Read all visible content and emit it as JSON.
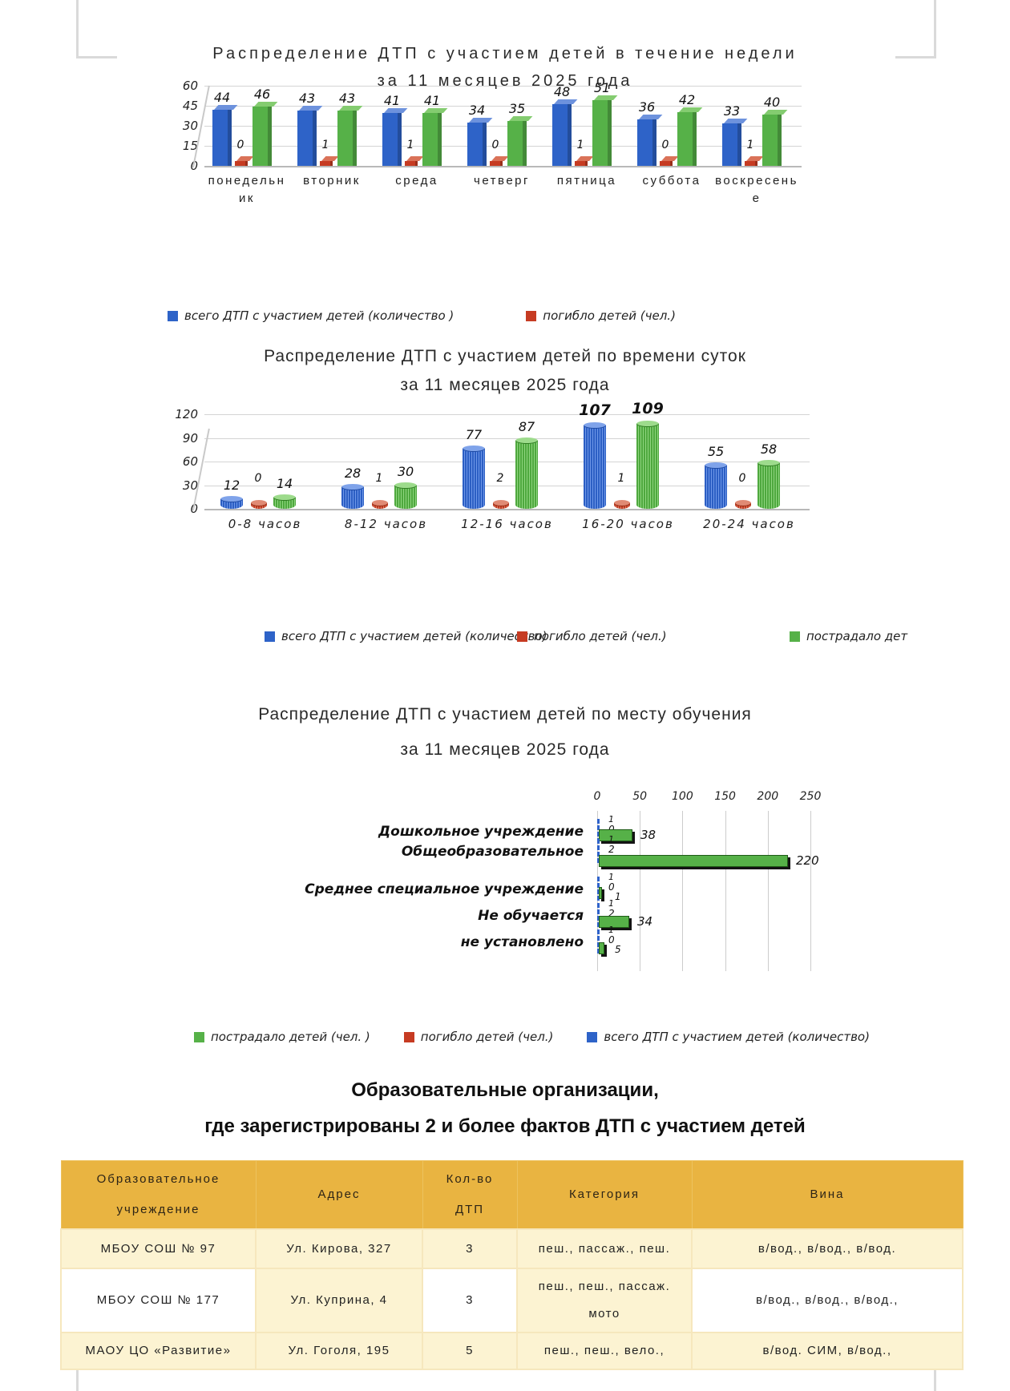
{
  "colors": {
    "total_blue": "#2e63c8",
    "died_red": "#c63b22",
    "injured_green": "#56b148",
    "table_header_orange": "#e9b441",
    "table_row_cream": "#fcf3d2",
    "table_row_white": "#ffffff"
  },
  "chart_data": [
    {
      "type": "bar",
      "orientation": "vertical",
      "title": "Распределение ДТП с участием детей в течение недели",
      "subtitle": "за 11 месяцев  2025 года",
      "categories": [
        "понедельник",
        "вторник",
        "среда",
        "четверг",
        "пятница",
        "суббота",
        "воскресенье"
      ],
      "series": [
        {
          "name": "всего ДТП с участием детей (количество )",
          "color": "#2e63c8",
          "values": [
            44,
            43,
            41,
            34,
            48,
            36,
            33
          ]
        },
        {
          "name": "погибло детей (чел.)",
          "color": "#c63b22",
          "values": [
            0,
            1,
            1,
            0,
            1,
            0,
            1
          ]
        },
        {
          "name": "пострадало детей (чел.)",
          "color": "#56b148",
          "values": [
            46,
            43,
            41,
            35,
            51,
            42,
            40
          ]
        }
      ],
      "ylim": [
        0,
        60
      ],
      "y_ticks": [
        60,
        45,
        30,
        15,
        0
      ],
      "grid": true,
      "legend_position": "bottom",
      "legend": [
        {
          "label": "всего ДТП с участием детей (количество )",
          "color": "#2e63c8"
        },
        {
          "label": "погибло детей (чел.)",
          "color": "#c63b22"
        }
      ]
    },
    {
      "type": "bar",
      "orientation": "vertical",
      "bar_shape": "cylinder",
      "title": "Распределение ДТП с участием детей  по времени суток",
      "subtitle": "за 11 месяцев 2025 года",
      "categories": [
        "0-8 часов",
        "8-12 часов",
        "12-16 часов",
        "16-20 часов",
        "20-24 часов"
      ],
      "series": [
        {
          "name": "всего ДТП с участием детей (количество)",
          "color": "#2e63c8",
          "values": [
            12,
            28,
            77,
            107,
            55
          ]
        },
        {
          "name": "погибло детей (чел.)",
          "color": "#c63b22",
          "values": [
            0,
            1,
            2,
            1,
            0
          ]
        },
        {
          "name": "пострадало детей (чел.)",
          "color": "#56b148",
          "values": [
            14,
            30,
            87,
            109,
            58
          ]
        }
      ],
      "ylim": [
        0,
        120
      ],
      "y_ticks": [
        120,
        90,
        60,
        30,
        0
      ],
      "grid": true,
      "legend_position": "bottom",
      "legend": [
        {
          "label": "всего ДТП с участием детей (количество)",
          "color": "#2e63c8"
        },
        {
          "label": "погибло детей (чел.)",
          "color": "#c63b22"
        },
        {
          "label": "пострадало дет",
          "color": "#56b148"
        }
      ]
    },
    {
      "type": "bar",
      "orientation": "horizontal",
      "title": "Распределение ДТП с участием детей  по месту обучения",
      "subtitle": "за 11 месяцев 2025 года",
      "categories": [
        "Дошкольное учреждение",
        "Общеобразовательное",
        "Среднее специальное учреждение",
        "Не обучается",
        "не установлено"
      ],
      "series": [
        {
          "name": "всего ДТП с участием детей (количество)",
          "color": "#2e63c8",
          "values": [
            1,
            1,
            1,
            1,
            1
          ]
        },
        {
          "name": "погибло детей (чел.)",
          "color": "#c63b22",
          "values": [
            0,
            2,
            0,
            2,
            0
          ]
        },
        {
          "name": "пострадало детей (чел. )",
          "color": "#56b148",
          "values": [
            38,
            220,
            1,
            34,
            5
          ]
        }
      ],
      "xlim": [
        0,
        250
      ],
      "x_ticks": [
        0,
        50,
        100,
        150,
        200,
        250
      ],
      "grid": true,
      "legend_position": "bottom",
      "legend": [
        {
          "label": "пострадало детей (чел. )",
          "color": "#56b148"
        },
        {
          "label": "погибло детей (чел.)",
          "color": "#c63b22"
        },
        {
          "label": "всего ДТП с участием детей (количество)",
          "color": "#2e63c8"
        }
      ]
    }
  ],
  "table": {
    "heading_line1": "Образовательные организации,",
    "heading_line2": "где зарегистрированы 2 и более фактов ДТП с участием детей",
    "columns": [
      "Образовательное\nучреждение",
      "Адрес",
      "Кол-во\nДТП",
      "Категория",
      "Вина"
    ],
    "rows": [
      {
        "org": "МБОУ СОШ № 97",
        "address": "Ул. Кирова, 327",
        "count": "3",
        "category": "пеш., пассаж., пеш.",
        "fault": "в/вод., в/вод., в/вод."
      },
      {
        "org": "МБОУ СОШ № 177",
        "address": "Ул. Куприна, 4",
        "count": "3",
        "category": "пеш., пеш., пассаж.\nмото",
        "fault": "в/вод., в/вод., в/вод.,"
      },
      {
        "org": "МАОУ ЦО «Развитие»",
        "address": "Ул. Гоголя, 195",
        "count": "5",
        "category": "пеш., пеш., вело.,",
        "fault": "в/вод. СИМ, в/вод.,"
      }
    ]
  }
}
